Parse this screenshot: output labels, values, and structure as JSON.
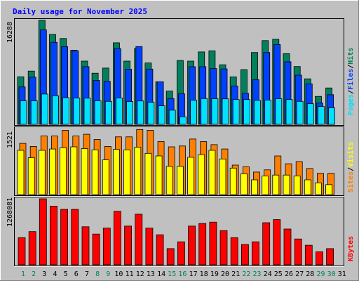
{
  "title": "Daily usage for November 2025",
  "colors": {
    "background": "#c0c0c0",
    "title": "#0000ff",
    "hits": "#00805c",
    "files": "#0040ff",
    "pages": "#00e0ff",
    "visits": "#ffff00",
    "sites": "#ff8000",
    "kbytes": "#ff0000",
    "weekday_label": "#000000",
    "weekend_label": "#00805c",
    "separator": "#000000"
  },
  "chart_data": [
    {
      "type": "bar",
      "name": "hits-files-pages",
      "categories": [
        "1",
        "2",
        "3",
        "4",
        "5",
        "6",
        "7",
        "8",
        "9",
        "10",
        "11",
        "12",
        "13",
        "14",
        "15",
        "16",
        "17",
        "18",
        "19",
        "20",
        "21",
        "22",
        "23",
        "24",
        "25",
        "26",
        "27",
        "28",
        "29",
        "30",
        "31"
      ],
      "weekend_days": [
        "1",
        "2",
        "8",
        "9",
        "15",
        "16",
        "22",
        "23",
        "29",
        "30"
      ],
      "ytick_label": "16288",
      "ymax": 16288,
      "legend": [
        "Hits",
        "/",
        "Files",
        "/",
        "Pages"
      ],
      "series": [
        {
          "name": "Hits",
          "values": [
            7450,
            8340,
            16288,
            14090,
            13450,
            11610,
            9910,
            8010,
            8810,
            12780,
            9910,
            11880,
            9620,
            6670,
            5220,
            10000,
            9910,
            11350,
            11520,
            9330,
            7440,
            8570,
            11260,
            13120,
            13330,
            11070,
            9060,
            7130,
            4380,
            5700,
            0
          ]
        },
        {
          "name": "Files",
          "values": [
            5870,
            7380,
            14790,
            12850,
            12170,
            11530,
            9040,
            6880,
            6740,
            11880,
            8640,
            12180,
            8660,
            6670,
            4040,
            4790,
            9040,
            9040,
            8740,
            8680,
            6010,
            4860,
            6990,
            11260,
            12490,
            9810,
            7700,
            6350,
            3340,
            4640,
            0
          ]
        },
        {
          "name": "Pages",
          "values": [
            3680,
            3680,
            4740,
            4480,
            4180,
            4120,
            4110,
            3700,
            3600,
            4140,
            3580,
            3660,
            3460,
            2900,
            2220,
            1180,
            3780,
            4040,
            4020,
            4000,
            3880,
            3880,
            3750,
            3810,
            4020,
            3890,
            3600,
            3230,
            2800,
            2590,
            0
          ]
        }
      ]
    },
    {
      "type": "bar",
      "name": "visits-sites",
      "categories": [
        "1",
        "2",
        "3",
        "4",
        "5",
        "6",
        "7",
        "8",
        "9",
        "10",
        "11",
        "12",
        "13",
        "14",
        "15",
        "16",
        "17",
        "18",
        "19",
        "20",
        "21",
        "22",
        "23",
        "24",
        "25",
        "26",
        "27",
        "28",
        "29",
        "30",
        "31"
      ],
      "ytick_label": "1521",
      "ymax": 1521,
      "legend": [
        "Visits",
        "/",
        "Sites"
      ],
      "series": [
        {
          "name": "Visits",
          "values": [
            1020,
            850,
            1020,
            1050,
            1080,
            1100,
            1060,
            1030,
            800,
            1040,
            1030,
            1090,
            950,
            890,
            650,
            650,
            860,
            920,
            1020,
            820,
            610,
            480,
            340,
            430,
            450,
            450,
            430,
            340,
            270,
            230,
            0
          ]
        },
        {
          "name": "Sites",
          "values": [
            1180,
            1110,
            1350,
            1350,
            1480,
            1350,
            1390,
            1270,
            1110,
            1330,
            1330,
            1500,
            1480,
            1220,
            1100,
            1120,
            1280,
            1220,
            1150,
            1050,
            680,
            640,
            520,
            570,
            890,
            710,
            760,
            600,
            490,
            490,
            0
          ]
        }
      ]
    },
    {
      "type": "bar",
      "name": "kbytes",
      "categories": [
        "1",
        "2",
        "3",
        "4",
        "5",
        "6",
        "7",
        "8",
        "9",
        "10",
        "11",
        "12",
        "13",
        "14",
        "15",
        "16",
        "17",
        "18",
        "19",
        "20",
        "21",
        "22",
        "23",
        "24",
        "25",
        "26",
        "27",
        "28",
        "29",
        "30",
        "31"
      ],
      "ytick_label": "1268081",
      "ymax": 1268081,
      "legend": [
        "KBytes"
      ],
      "series": [
        {
          "name": "KBytes",
          "values": [
            522000,
            638000,
            1268081,
            1127000,
            1066000,
            1066000,
            731000,
            591000,
            705000,
            1028000,
            744000,
            972000,
            705000,
            577000,
            311000,
            443000,
            744000,
            794000,
            820000,
            657000,
            522000,
            391000,
            443000,
            809000,
            869000,
            688000,
            497000,
            376000,
            251000,
            311000,
            0
          ]
        }
      ]
    }
  ]
}
